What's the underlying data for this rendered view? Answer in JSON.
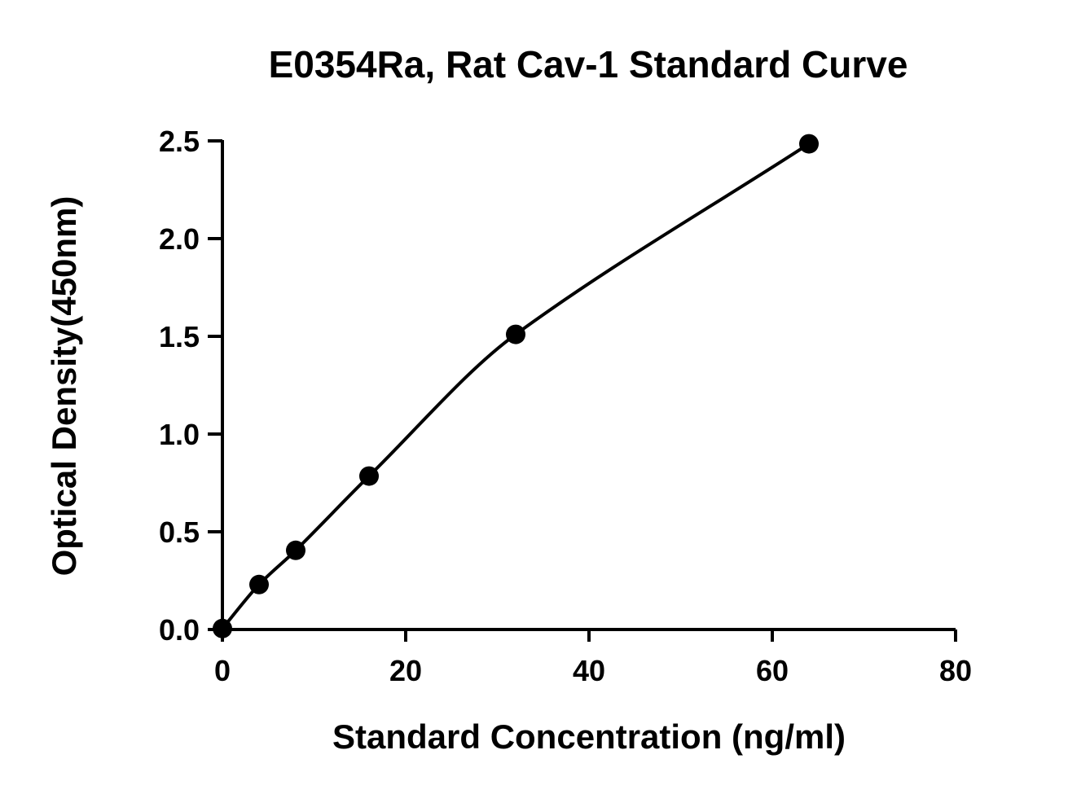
{
  "chart_data": {
    "type": "scatter",
    "title": "E0354Ra, Rat Cav-1 Standard Curve",
    "xlabel": "Standard Concentration (ng/ml)",
    "ylabel": "Optical Density(450nm)",
    "xlim": [
      0,
      80
    ],
    "ylim": [
      0,
      2.5
    ],
    "x_ticks": [
      "0",
      "20",
      "40",
      "60",
      "80"
    ],
    "y_ticks": [
      "0.0",
      "0.5",
      "1.0",
      "1.5",
      "2.0",
      "2.5"
    ],
    "grid": false,
    "legend": "none",
    "series": [
      {
        "x": [
          0,
          4,
          8,
          16,
          32,
          64
        ],
        "y": [
          0.005,
          0.23,
          0.405,
          0.785,
          1.51,
          2.485
        ],
        "marker": "circle",
        "color": "#000000",
        "fit_curve": true
      }
    ]
  }
}
